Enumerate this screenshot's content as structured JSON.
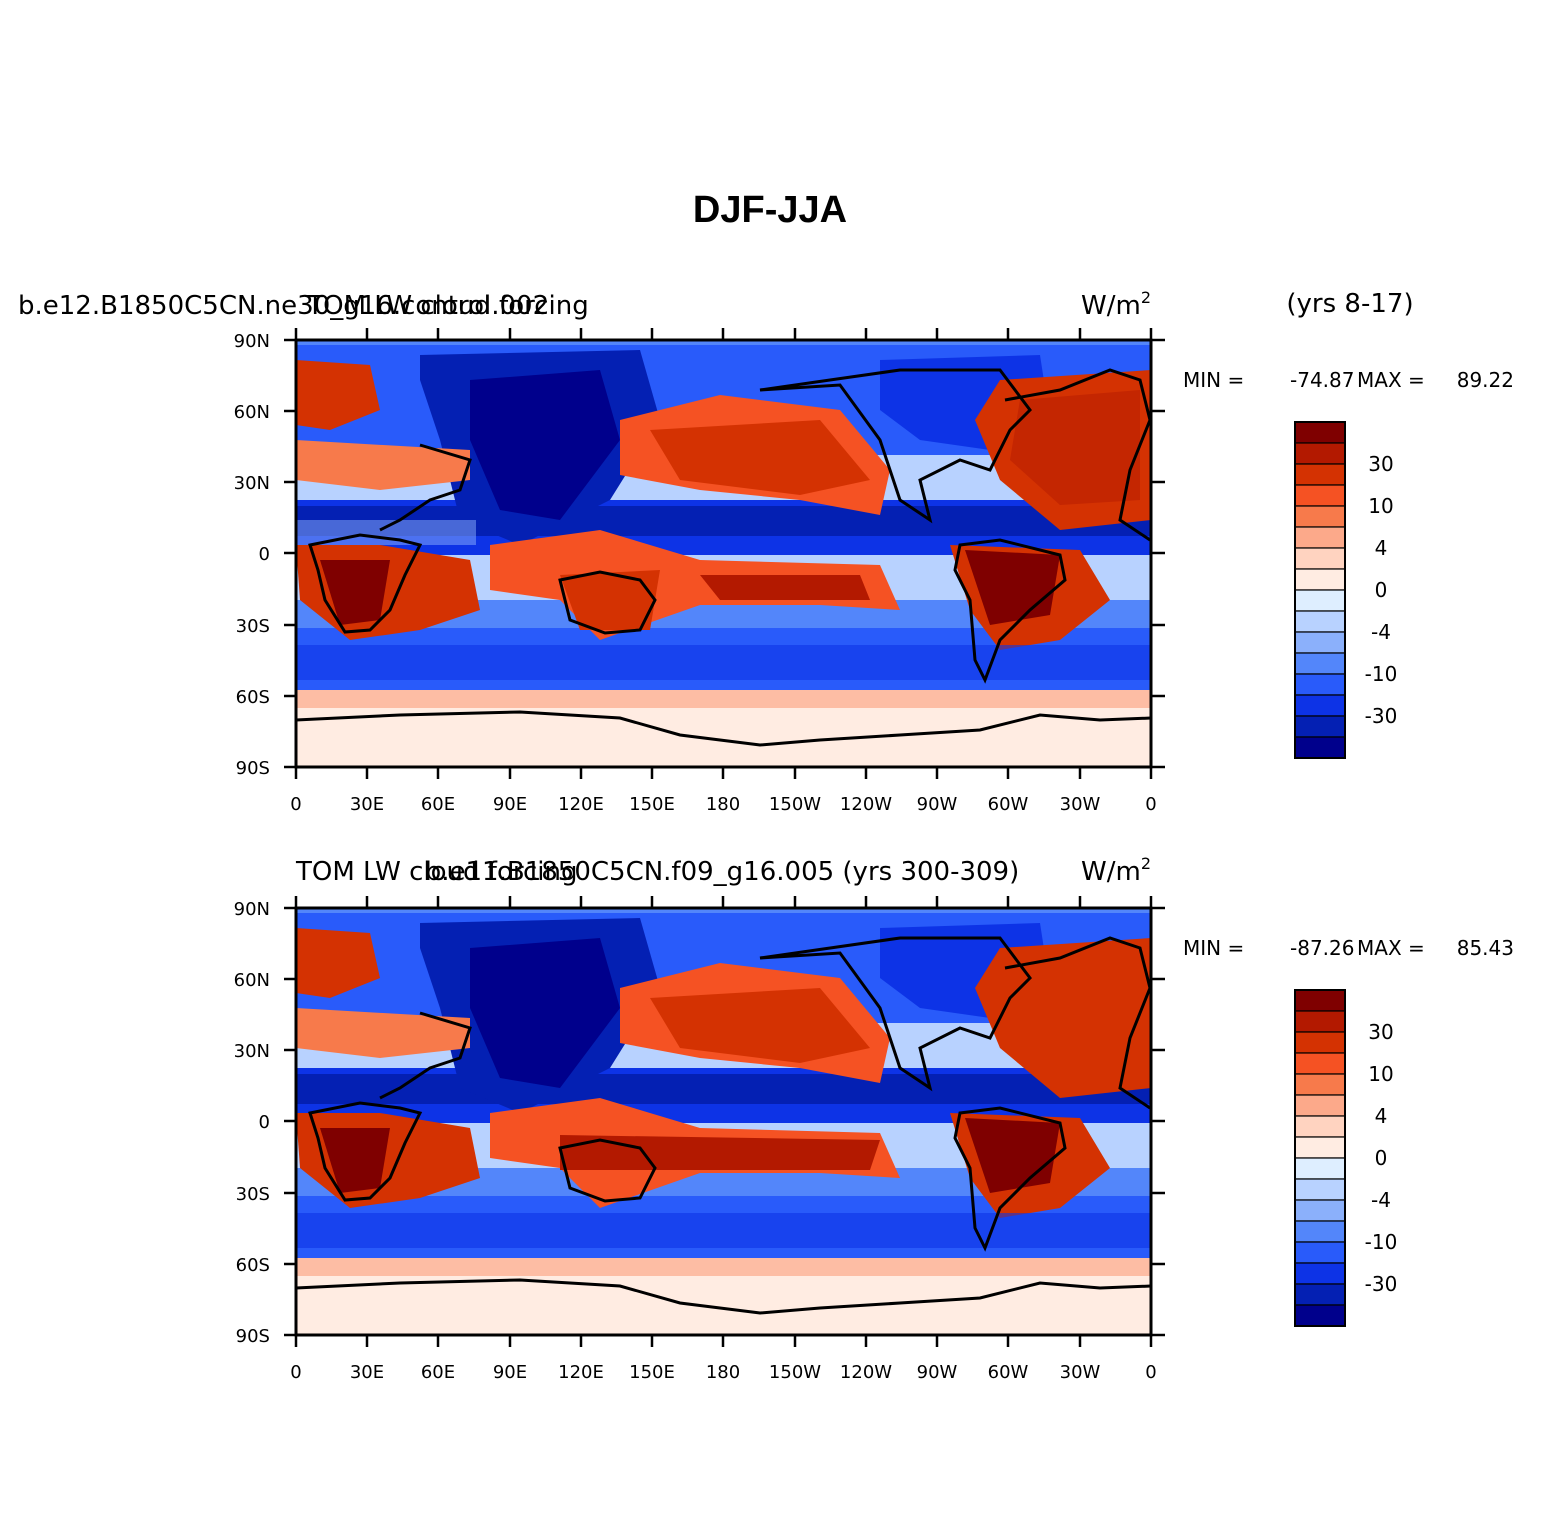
{
  "figure": {
    "title": "DJF-JJA"
  },
  "panels": [
    {
      "id": "top",
      "left_string": "b.e12.B1850C5CN.ne30_g16.control.002",
      "center_string": "TOM LW cloud forcing",
      "units_base": "W/m",
      "units_exp": "2",
      "years": "(yrs 8-17)",
      "min": "-74.87",
      "max": "89.22",
      "min_label": "MIN =",
      "max_label": "MAX ="
    },
    {
      "id": "bottom",
      "left_string": "TOM LW cloud forcing",
      "center_string": "b.e11.B1850C5CN.f09_g16.005 (yrs 300-309)",
      "units_base": "W/m",
      "units_exp": "2",
      "min": "-87.26",
      "max": "85.43",
      "min_label": "MIN =",
      "max_label": "MAX ="
    }
  ],
  "axes": {
    "lat_labels": [
      "90N",
      "60N",
      "30N",
      "0",
      "30S",
      "60S",
      "90S"
    ],
    "lon_labels": [
      "0",
      "30E",
      "60E",
      "90E",
      "120E",
      "150E",
      "180",
      "150W",
      "120W",
      "90W",
      "60W",
      "30W",
      "0"
    ]
  },
  "colorbar": {
    "labels": [
      "30",
      "10",
      "4",
      "0",
      "-4",
      "-10",
      "-30"
    ],
    "colors": [
      "#7f0000",
      "#b31900",
      "#d43202",
      "#f55223",
      "#f77a4b",
      "#fca98a",
      "#ffd3c0",
      "#ffece2",
      "#deeeff",
      "#b8d2ff",
      "#8bb0fb",
      "#5386fa",
      "#295bfa",
      "#0d33e6",
      "#0420b3",
      "#00008c"
    ]
  }
}
